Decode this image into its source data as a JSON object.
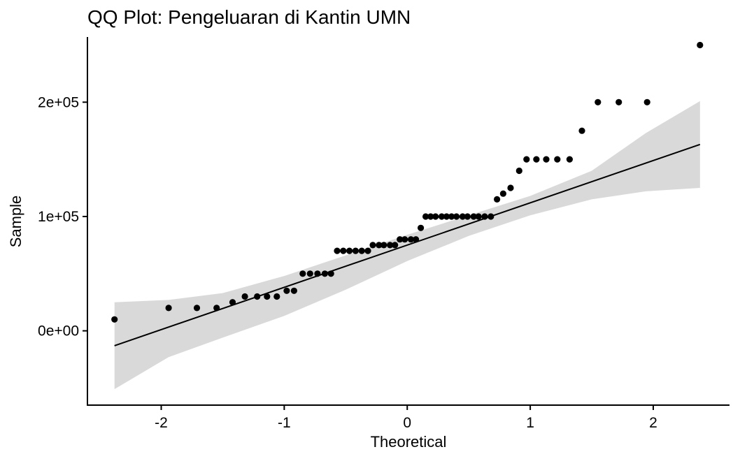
{
  "chart_data": {
    "type": "scatter",
    "title": "QQ Plot: Pengeluaran di Kantin UMN",
    "xlabel": "Theoretical",
    "ylabel": "Sample",
    "xlim": [
      -2.6,
      2.62
    ],
    "ylim": [
      -65000,
      257000
    ],
    "x_ticks": [
      -2,
      -1,
      0,
      1,
      2
    ],
    "x_tick_labels": [
      "-2",
      "-1",
      "0",
      "1",
      "2"
    ],
    "y_ticks": [
      0,
      100000,
      200000
    ],
    "y_tick_labels": [
      "0e+00",
      "1e+05",
      "2e+05"
    ],
    "grid": false,
    "legend": "none",
    "colors": {
      "points": "#000000",
      "line": "#000000",
      "band": "#d9d9d9"
    },
    "points": {
      "x": [
        -2.38,
        -1.94,
        -1.71,
        -1.55,
        -1.42,
        -1.32,
        -1.22,
        -1.14,
        -1.06,
        -0.98,
        -0.92,
        -0.85,
        -0.79,
        -0.73,
        -0.67,
        -0.62,
        -0.57,
        -0.52,
        -0.47,
        -0.42,
        -0.37,
        -0.32,
        -0.28,
        -0.23,
        -0.19,
        -0.14,
        -0.1,
        -0.06,
        -0.02,
        0.03,
        0.07,
        0.11,
        0.15,
        0.19,
        0.23,
        0.28,
        0.32,
        0.36,
        0.4,
        0.45,
        0.49,
        0.54,
        0.58,
        0.63,
        0.68,
        0.73,
        0.78,
        0.84,
        0.91,
        0.97,
        1.05,
        1.13,
        1.22,
        1.32,
        1.42,
        1.55,
        1.72,
        1.95,
        2.38
      ],
      "y": [
        10000,
        20000,
        20000,
        20000,
        25000,
        30000,
        30000,
        30000,
        30000,
        35000,
        35000,
        50000,
        50000,
        50000,
        50000,
        50000,
        70000,
        70000,
        70000,
        70000,
        70000,
        70000,
        75000,
        75000,
        75000,
        75000,
        75000,
        80000,
        80000,
        80000,
        80000,
        90000,
        100000,
        100000,
        100000,
        100000,
        100000,
        100000,
        100000,
        100000,
        100000,
        100000,
        100000,
        100000,
        100000,
        115000,
        120000,
        125000,
        140000,
        150000,
        150000,
        150000,
        150000,
        150000,
        175000,
        200000,
        200000,
        200000,
        250000
      ]
    },
    "reference_line": {
      "x": [
        -2.38,
        2.38
      ],
      "y": [
        -13000,
        163000
      ]
    },
    "confidence_band": {
      "x": [
        -2.38,
        -1.94,
        -1.5,
        -1.0,
        -0.5,
        0.0,
        0.5,
        1.0,
        1.5,
        1.94,
        2.38
      ],
      "upper": [
        25000,
        27000,
        33000,
        48000,
        66000,
        84000,
        101000,
        118000,
        140000,
        173000,
        201000
      ],
      "lower": [
        -51000,
        -23000,
        -6000,
        13000,
        36000,
        61000,
        83000,
        101000,
        115000,
        122000,
        125000
      ]
    }
  }
}
